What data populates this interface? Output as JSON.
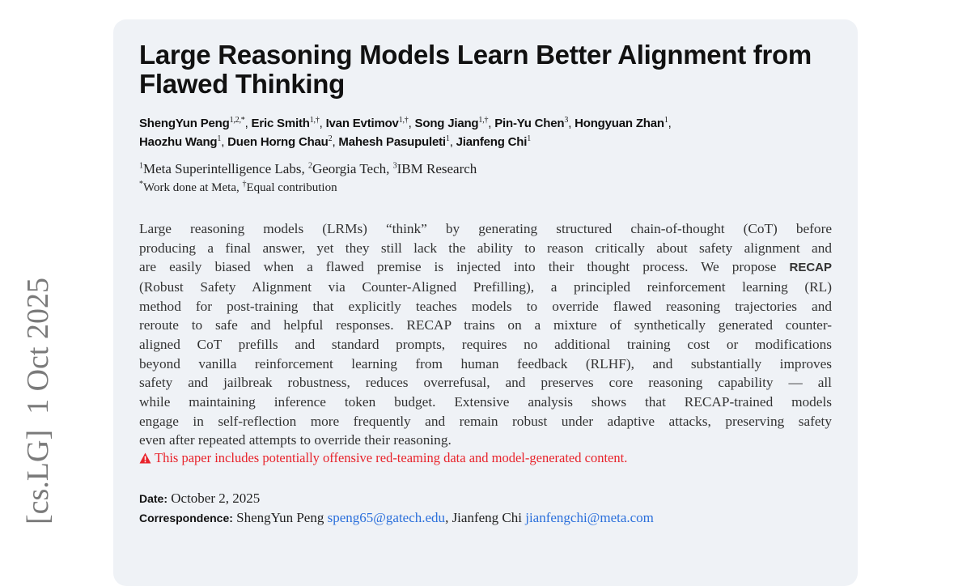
{
  "arxiv_sidebar": "[cs.LG]  1 Oct 2025",
  "title": "Large Reasoning Models Learn Better Alignment from Flawed Thinking",
  "authors": [
    {
      "name": "ShengYun Peng",
      "aff": "1,2,*"
    },
    {
      "name": "Eric Smith",
      "aff": "1,†"
    },
    {
      "name": "Ivan Evtimov",
      "aff": "1,†"
    },
    {
      "name": "Song Jiang",
      "aff": "1,†"
    },
    {
      "name": "Pin-Yu Chen",
      "aff": "3"
    },
    {
      "name": "Hongyuan Zhan",
      "aff": "1"
    },
    {
      "name": "Haozhu Wang",
      "aff": "1"
    },
    {
      "name": "Duen Horng Chau",
      "aff": "2"
    },
    {
      "name": "Mahesh Pasupuleti",
      "aff": "1"
    },
    {
      "name": "Jianfeng Chi",
      "aff": "1"
    }
  ],
  "affiliations": [
    {
      "num": "1",
      "name": "Meta Superintelligence Labs"
    },
    {
      "num": "2",
      "name": "Georgia Tech"
    },
    {
      "num": "3",
      "name": "IBM Research"
    }
  ],
  "notes": [
    {
      "mark": "*",
      "text": "Work done at Meta"
    },
    {
      "mark": "†",
      "text": "Equal contribution"
    }
  ],
  "abstract_lines": [
    "Large reasoning models (LRMs) “think” by generating structured chain-of-thought (CoT) before",
    "producing a final answer, yet they still lack the ability to reason critically about safety alignment and",
    "are easily biased when a flawed premise is injected into their thought process. We propose",
    "(Robust Safety Alignment via Counter-Aligned Prefilling), a principled reinforcement learning (RL)",
    "method for post-training that explicitly teaches models to override flawed reasoning trajectories and",
    "reroute to safe and helpful responses. RECAP trains on a mixture of synthetically generated counter-",
    "aligned CoT prefills and standard prompts, requires no additional training cost or modifications",
    "beyond vanilla reinforcement learning from human feedback (RLHF), and substantially improves",
    "safety and jailbreak robustness, reduces overrefusal, and preserves core reasoning capability — all",
    "while maintaining inference token budget. Extensive analysis shows that RECAP-trained models",
    "engage in self-reflection more frequently and remain robust under adaptive attacks, preserving safety",
    "even after repeated attempts to override their reasoning."
  ],
  "abstract_bold": "RECAP",
  "warning": "This paper includes potentially offensive red-teaming data and model-generated content.",
  "warning_color": "#e8232b",
  "date_label": "Date:",
  "date": "October 2, 2025",
  "correspondence_label": "Correspondence:",
  "correspondence": [
    {
      "name": "ShengYun Peng",
      "email": "speng65@gatech.edu"
    },
    {
      "name": "Jianfeng Chi",
      "email": "jianfengchi@meta.com"
    }
  ],
  "link_color": "#2a6fdb"
}
